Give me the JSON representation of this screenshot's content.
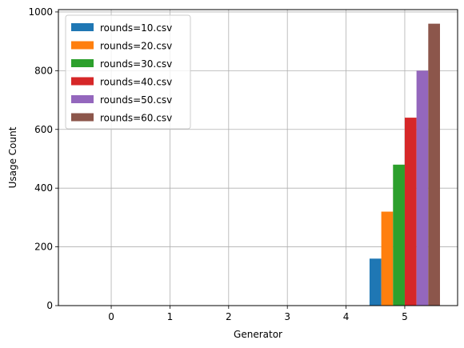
{
  "chart_data": {
    "type": "bar",
    "xlabel": "Generator",
    "ylabel": "Usage Count",
    "title": "",
    "x_ticks": [
      0,
      1,
      2,
      3,
      4,
      5
    ],
    "y_ticks": [
      0,
      200,
      400,
      600,
      800,
      1000
    ],
    "xlim": [
      -0.9,
      5.9
    ],
    "ylim": [
      0,
      1008
    ],
    "grid": true,
    "legend_position": "top-left",
    "series": [
      {
        "name": "rounds=10.csv",
        "color": "#1f77b4",
        "x": 4.5,
        "value": 160
      },
      {
        "name": "rounds=20.csv",
        "color": "#ff7f0e",
        "x": 4.7,
        "value": 320
      },
      {
        "name": "rounds=30.csv",
        "color": "#2ca02c",
        "x": 4.9,
        "value": 480
      },
      {
        "name": "rounds=40.csv",
        "color": "#d62728",
        "x": 5.1,
        "value": 640
      },
      {
        "name": "rounds=50.csv",
        "color": "#9467bd",
        "x": 5.3,
        "value": 800
      },
      {
        "name": "rounds=60.csv",
        "color": "#8c564b",
        "x": 5.5,
        "value": 960
      }
    ]
  }
}
